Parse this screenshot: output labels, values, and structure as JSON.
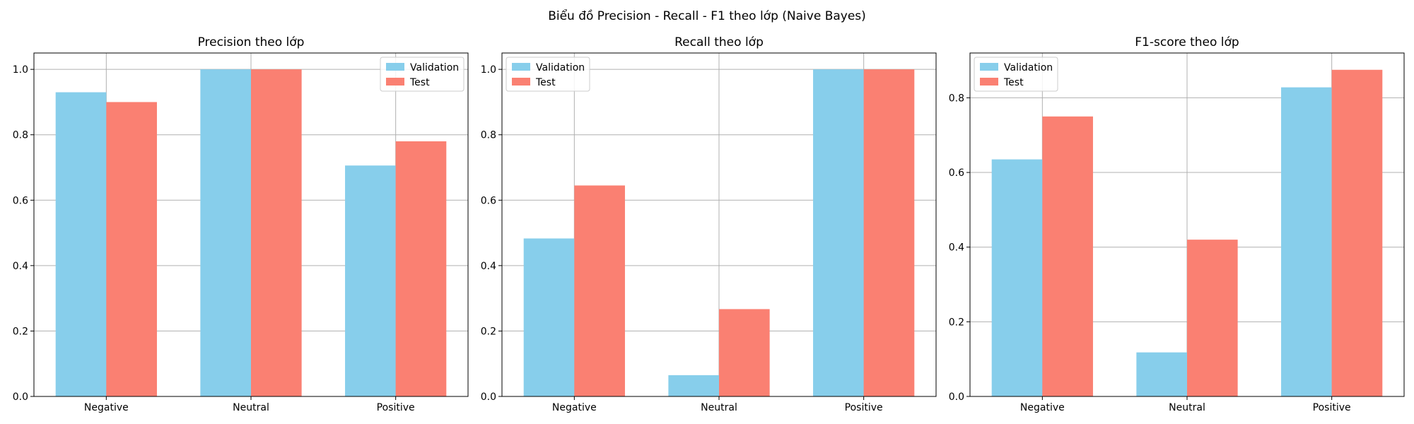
{
  "figure": {
    "suptitle": "Biểu đồ Precision - Recall - F1 theo lớp (Naive Bayes)"
  },
  "colors": {
    "validation": "#87CEEB",
    "test": "#FA8072",
    "grid": "#b0b0b0"
  },
  "chart_data": [
    {
      "type": "bar",
      "title": "Precision theo lớp",
      "categories": [
        "Negative",
        "Neutral",
        "Positive"
      ],
      "series": [
        {
          "name": "Validation",
          "values": [
            0.93,
            1.0,
            0.706
          ]
        },
        {
          "name": "Test",
          "values": [
            0.9,
            1.0,
            0.78
          ]
        }
      ],
      "ylim": [
        0,
        1.05
      ],
      "yticks": [
        "0.0",
        "0.2",
        "0.4",
        "0.6",
        "0.8",
        "1.0"
      ],
      "legend": "top-right",
      "grid": true
    },
    {
      "type": "bar",
      "title": "Recall theo lớp",
      "categories": [
        "Negative",
        "Neutral",
        "Positive"
      ],
      "series": [
        {
          "name": "Validation",
          "values": [
            0.483,
            0.065,
            1.0
          ]
        },
        {
          "name": "Test",
          "values": [
            0.645,
            0.267,
            1.0
          ]
        }
      ],
      "ylim": [
        0,
        1.05
      ],
      "yticks": [
        "0.0",
        "0.2",
        "0.4",
        "0.6",
        "0.8",
        "1.0"
      ],
      "legend": "top-left",
      "grid": true
    },
    {
      "type": "bar",
      "title": "F1-score theo lớp",
      "categories": [
        "Negative",
        "Neutral",
        "Positive"
      ],
      "series": [
        {
          "name": "Validation",
          "values": [
            0.635,
            0.118,
            0.828
          ]
        },
        {
          "name": "Test",
          "values": [
            0.75,
            0.42,
            0.875
          ]
        }
      ],
      "ylim": [
        0,
        0.92
      ],
      "yticks": [
        "0.0",
        "0.2",
        "0.4",
        "0.6",
        "0.8"
      ],
      "legend": "top-left",
      "grid": true
    }
  ]
}
